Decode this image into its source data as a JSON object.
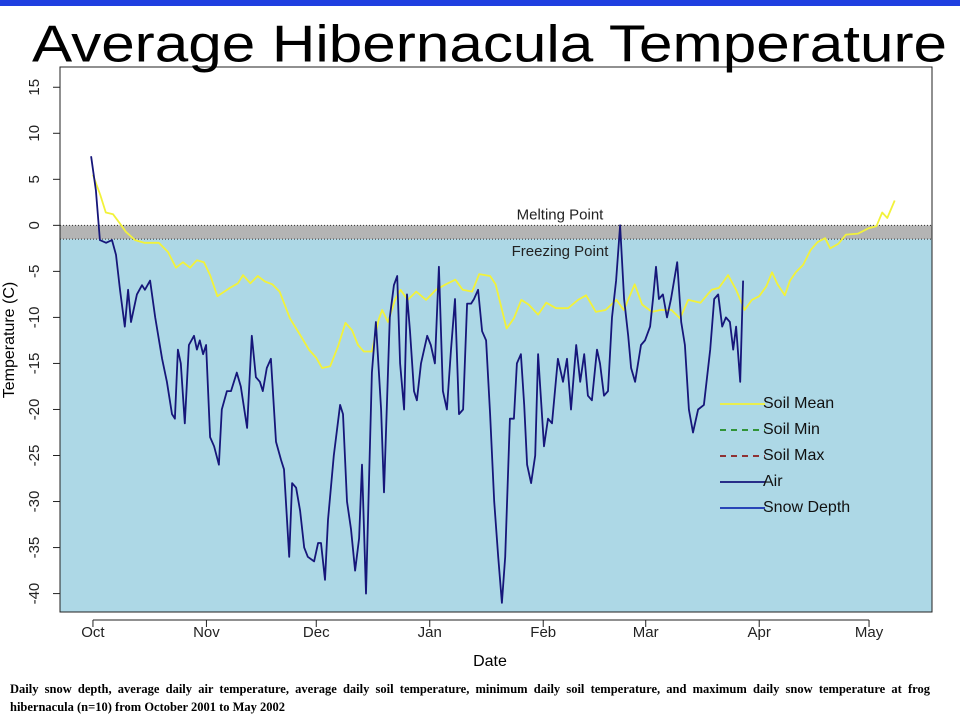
{
  "chart_data": {
    "type": "line",
    "title": "Average Hibernacula Temperature",
    "xlabel": "Date",
    "ylabel": "Temperature (C)",
    "caption": "Daily snow depth, average daily air temperature, average daily soil temperature, minimum daily soil temperature, and maximum daily snow temperature at frog hibernacula (n=10) from October 2001 to May 2002",
    "xlim": [
      -9,
      229.2
    ],
    "xticks": [
      {
        "value": 0,
        "label": "Oct"
      },
      {
        "value": 31,
        "label": "Nov"
      },
      {
        "value": 61,
        "label": "Dec"
      },
      {
        "value": 92,
        "label": "Jan"
      },
      {
        "value": 123,
        "label": "Feb"
      },
      {
        "value": 151,
        "label": "Mar"
      },
      {
        "value": 182,
        "label": "Apr"
      },
      {
        "value": 212,
        "label": "May"
      }
    ],
    "ylim": [
      -42,
      17.2
    ],
    "yticks": [
      15,
      10,
      5,
      0,
      -5,
      -10,
      -15,
      -20,
      -25,
      -30,
      -35,
      -40
    ],
    "reference_lines": [
      {
        "value": 0,
        "label": "Melting Point",
        "color": "#b4b4b4"
      },
      {
        "value": -1.5,
        "label": "Freezing Point",
        "color": "#add8e6"
      }
    ],
    "legend": "right",
    "series": [
      {
        "name": "Soil Mean",
        "color": "#f2f23a",
        "dash": "none",
        "x": [
          0,
          2,
          3.5,
          5.5,
          7,
          9,
          11.5,
          14,
          18,
          20.5,
          22.7,
          24.6,
          26.5,
          28.4,
          30.3,
          32,
          34,
          37.4,
          39.6,
          41,
          43,
          45,
          47,
          49,
          51,
          53.8,
          56.6,
          59,
          61,
          62.6,
          64.8,
          67,
          69,
          70.8,
          72.4,
          74,
          76.2,
          78,
          79,
          80.6,
          82.5,
          84,
          86,
          88.3,
          91,
          93.7,
          96.4,
          99,
          101,
          103.6,
          105.5,
          108.5,
          110,
          113,
          115,
          117,
          119,
          121.6,
          123.8,
          126.5,
          129.8,
          132.5,
          134.7,
          137.4,
          140,
          143,
          145,
          148,
          150,
          152.7,
          155,
          158,
          160.4,
          162.6,
          166,
          169,
          171,
          173.5,
          175.7,
          178,
          180,
          182,
          184,
          185.5,
          187,
          189,
          190.4,
          192,
          194,
          196,
          198,
          200,
          201.4,
          203.6,
          205.7,
          209,
          212,
          214,
          215.6,
          217,
          219
        ],
        "values": [
          5.5,
          3.3,
          1.4,
          1.2,
          0.4,
          -0.7,
          -1.6,
          -1.9,
          -1.9,
          -2.9,
          -4.6,
          -4,
          -4.6,
          -3.8,
          -4,
          -5.4,
          -7.7,
          -6.8,
          -6.3,
          -5.4,
          -6.3,
          -5.5,
          -6.1,
          -6.4,
          -7.2,
          -10.1,
          -11.9,
          -13.5,
          -14.4,
          -15.5,
          -15.3,
          -13.1,
          -10.6,
          -11.4,
          -13,
          -13.7,
          -13.7,
          -10.3,
          -9.2,
          -10.5,
          -8.1,
          -7,
          -8.1,
          -7.2,
          -8.1,
          -7,
          -6.4,
          -5.9,
          -7,
          -7.2,
          -5.3,
          -5.5,
          -6.4,
          -11.2,
          -10.1,
          -8.1,
          -8.6,
          -9.7,
          -8.4,
          -9,
          -9,
          -8.1,
          -7.6,
          -9.4,
          -9.2,
          -8.1,
          -9.2,
          -6.4,
          -8.6,
          -9.4,
          -9.2,
          -9.2,
          -10.1,
          -8.1,
          -8.4,
          -7,
          -6.8,
          -5.4,
          -7,
          -9.2,
          -8.1,
          -7.7,
          -6.6,
          -5.1,
          -6.4,
          -7.6,
          -6,
          -5.1,
          -4.3,
          -2.7,
          -1.8,
          -1.4,
          -2.5,
          -2,
          -1,
          -0.9,
          -0.3,
          -0.1,
          1.4,
          0.8,
          2.7
        ]
      },
      {
        "name": "Soil Min",
        "color": "#1f8a1f",
        "dash": "6 5",
        "x": [],
        "values": []
      },
      {
        "name": "Soil Max",
        "color": "#8b1a1a",
        "dash": "6 5",
        "x": [],
        "values": []
      },
      {
        "name": "Air",
        "color": "#16167a",
        "dash": "none",
        "x": [
          -0.5,
          0.8,
          1.9,
          3.6,
          5.2,
          6.3,
          7.4,
          8.7,
          9.6,
          10.4,
          12,
          13.4,
          14.2,
          15.6,
          17,
          18.9,
          20.2,
          21.6,
          22.4,
          23.2,
          24,
          25.1,
          26.2,
          27.6,
          28.4,
          29.2,
          30.1,
          30.9,
          32,
          33.1,
          34.4,
          35.2,
          36.6,
          37.7,
          39.3,
          40.4,
          42.1,
          43.4,
          44.5,
          45.6,
          46.4,
          47.5,
          48.6,
          50,
          51.4,
          52.2,
          53.6,
          54.4,
          55.5,
          56.6,
          57.7,
          58.7,
          60.4,
          61.5,
          62.3,
          63.4,
          64.2,
          65.8,
          67.5,
          68.3,
          69.4,
          70.5,
          71.6,
          72.7,
          73.5,
          74.6,
          76.2,
          77.3,
          78.7,
          79.5,
          81.1,
          82.2,
          83.1,
          83.9,
          85,
          85.8,
          86.6,
          87.7,
          88.5,
          89.6,
          91.3,
          92.3,
          93.4,
          94.5,
          95.6,
          96.7,
          97.8,
          98.9,
          100,
          101.1,
          102.2,
          103.3,
          104.1,
          105.2,
          106.3,
          107.4,
          108.5,
          109.6,
          110.7,
          111.7,
          112.6,
          113.9,
          115,
          115.8,
          116.9,
          117.8,
          118.6,
          119.7,
          120.8,
          121.6,
          123.2,
          124.3,
          125.4,
          127,
          128.4,
          129.5,
          130.6,
          132,
          133.1,
          134.2,
          135.2,
          136.3,
          137.7,
          138.5,
          139.6,
          140.7,
          141.8,
          142.9,
          144,
          145.1,
          146.2,
          147,
          148.1,
          149.7,
          150.8,
          152.2,
          153,
          153.8,
          154.6,
          155.7,
          156.8,
          157.9,
          159.6,
          160.7,
          161.7,
          162.8,
          163.9,
          165.3,
          166.9,
          168.6,
          169.7,
          170.8,
          171.9,
          172.9,
          174,
          174.9,
          175.7,
          176.8,
          177.6
        ],
        "values": [
          7.5,
          3.8,
          -1.6,
          -1.9,
          -1.6,
          -3.2,
          -7,
          -11,
          -7,
          -10.5,
          -7.5,
          -6.5,
          -7,
          -6,
          -10,
          -14.5,
          -17,
          -20.5,
          -21,
          -13.5,
          -15,
          -21.5,
          -13,
          -12,
          -13.5,
          -12.5,
          -14,
          -13,
          -23,
          -24,
          -26,
          -20,
          -18,
          -18,
          -16,
          -17.5,
          -22,
          -12,
          -16.5,
          -17,
          -18,
          -15.5,
          -14.5,
          -23.5,
          -25.5,
          -26.5,
          -36,
          -28,
          -28.5,
          -31,
          -35,
          -36,
          -36.5,
          -34.5,
          -34.5,
          -38.5,
          -32,
          -25,
          -19.5,
          -20.5,
          -30,
          -33,
          -37.5,
          -34,
          -26,
          -40,
          -16,
          -10.5,
          -20,
          -29,
          -10,
          -6.5,
          -5.5,
          -15,
          -20,
          -7.5,
          -11.5,
          -18,
          -19,
          -15,
          -12,
          -13,
          -15,
          -4.5,
          -18,
          -20,
          -13.5,
          -8,
          -20.5,
          -20,
          -8.5,
          -8.5,
          -8,
          -7,
          -11.5,
          -12.5,
          -20.5,
          -30,
          -36,
          -41,
          -36,
          -21,
          -21,
          -15,
          -14,
          -19.5,
          -26,
          -28,
          -25,
          -14,
          -24,
          -21,
          -21.5,
          -14.5,
          -17,
          -14.5,
          -20,
          -13,
          -17,
          -14,
          -18.5,
          -19,
          -13.5,
          -15,
          -18.5,
          -18,
          -10,
          -6,
          0,
          -8,
          -12,
          -15.5,
          -17,
          -13,
          -12.5,
          -11,
          -8,
          -4.5,
          -8,
          -7.5,
          -10,
          -8,
          -4,
          -10.5,
          -13,
          -20,
          -22.5,
          -20,
          -19.5,
          -13.5,
          -8,
          -7.5,
          -11,
          -10,
          -10.5,
          -13.5,
          -11,
          -17,
          -6
        ]
      },
      {
        "name": "Snow Depth",
        "color": "#1530b0",
        "dash": "none",
        "x": [],
        "values": []
      }
    ]
  }
}
